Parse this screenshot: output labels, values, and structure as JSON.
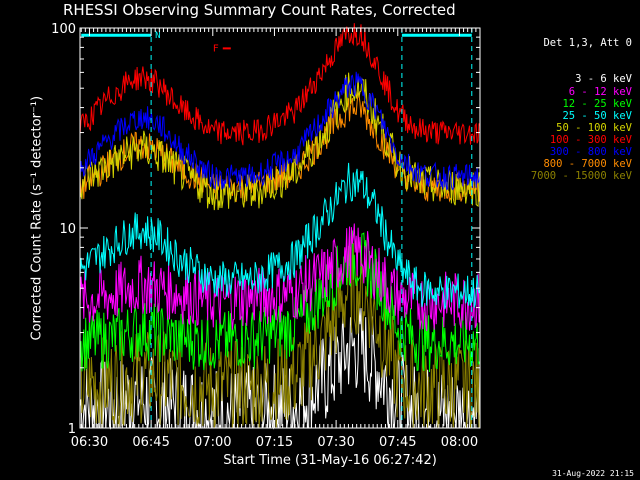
{
  "header": {
    "title": "RHESSI Observing Summary Count Rates, Corrected"
  },
  "legend": {
    "header": "Det 1,3, Att 0",
    "items": [
      {
        "label": "3 - 6 keV",
        "color": "#ffffff"
      },
      {
        "label": "6 - 12 keV",
        "color": "#ff00ff"
      },
      {
        "label": "12 - 25 keV",
        "color": "#00ff00"
      },
      {
        "label": "25 - 50 keV",
        "color": "#00ffff"
      },
      {
        "label": "50 - 100 keV",
        "color": "#d4d400"
      },
      {
        "label": "100 - 300 keV",
        "color": "#ff0000"
      },
      {
        "label": "300 - 800 keV",
        "color": "#0000ff"
      },
      {
        "label": "800 - 7000 keV",
        "color": "#ff8c00"
      },
      {
        "label": "7000 - 15000 keV",
        "color": "#8b8000"
      }
    ]
  },
  "footer": {
    "timestamp": "31-Aug-2022 21:15"
  },
  "annotations": {
    "n_flag": "N",
    "f_flag": "F"
  },
  "chart_data": {
    "type": "line",
    "title": "RHESSI Observing Summary Count Rates, Corrected",
    "xlabel": "Start Time (31-May-16 06:27:42)",
    "ylabel": "Corrected Count Rate (s⁻¹ detector⁻¹)",
    "y_scale": "log",
    "ylim": [
      1,
      100
    ],
    "xlim": [
      "06:27:42",
      "08:05:00"
    ],
    "x_ticks": [
      "06:30",
      "06:45",
      "07:00",
      "07:15",
      "07:30",
      "07:45",
      "08:00"
    ],
    "y_ticks": [
      "1",
      "10",
      "100"
    ],
    "x": [
      "06:28",
      "06:35",
      "06:40",
      "06:43",
      "06:47",
      "06:52",
      "07:00",
      "07:10",
      "07:20",
      "07:28",
      "07:33",
      "07:36",
      "07:40",
      "07:45",
      "07:50",
      "07:55",
      "08:03"
    ],
    "series": [
      {
        "name": "3 - 6 keV",
        "color": "#ffffff",
        "values": [
          1.3,
          1.3,
          1.4,
          1.4,
          1.3,
          1.3,
          1.2,
          1.2,
          1.3,
          1.8,
          2.5,
          2.5,
          2.0,
          1.4,
          1.2,
          1.2,
          1.2
        ]
      },
      {
        "name": "6 - 12 keV",
        "color": "#ff00ff",
        "values": [
          4.3,
          4.6,
          5.0,
          5.2,
          5.0,
          4.7,
          4.3,
          4.5,
          4.8,
          6.0,
          7.5,
          7.5,
          6.0,
          4.5,
          4.3,
          4.3,
          4.3
        ]
      },
      {
        "name": "12 - 25 keV",
        "color": "#00ff00",
        "values": [
          2.7,
          2.8,
          3.0,
          3.1,
          3.0,
          2.8,
          2.7,
          2.8,
          3.2,
          5.0,
          7.0,
          7.0,
          5.5,
          3.2,
          2.7,
          2.7,
          2.7
        ]
      },
      {
        "name": "25 - 50 keV",
        "color": "#00ffff",
        "values": [
          6.2,
          8.0,
          9.5,
          9.8,
          9.0,
          7.0,
          5.5,
          5.5,
          7.0,
          12,
          17,
          17,
          12,
          6.5,
          5.0,
          4.8,
          4.8
        ]
      },
      {
        "name": "50 - 100 keV",
        "color": "#d4d400",
        "values": [
          17,
          21,
          24,
          25,
          23,
          19,
          15,
          15,
          19,
          32,
          50,
          50,
          35,
          21,
          17,
          16,
          16
        ]
      },
      {
        "name": "100 - 300 keV",
        "color": "#ff0000",
        "values": [
          32,
          45,
          55,
          57,
          52,
          40,
          30,
          30,
          38,
          68,
          95,
          95,
          65,
          38,
          31,
          30,
          30
        ]
      },
      {
        "name": "300 - 800 keV",
        "color": "#0000ff",
        "values": [
          20,
          28,
          34,
          36,
          33,
          25,
          18,
          18,
          23,
          38,
          52,
          52,
          38,
          23,
          19,
          18,
          18
        ]
      },
      {
        "name": "800 - 7000 keV",
        "color": "#ff8c00",
        "values": [
          16,
          21,
          25,
          26,
          24,
          20,
          16,
          16,
          19,
          30,
          40,
          40,
          30,
          20,
          16,
          16,
          16
        ]
      },
      {
        "name": "7000 - 15000 keV",
        "color": "#8b8000",
        "values": [
          1.6,
          1.7,
          1.8,
          1.8,
          1.8,
          1.7,
          1.6,
          1.6,
          1.8,
          3.0,
          5.0,
          5.0,
          3.5,
          1.8,
          1.6,
          1.6,
          1.6
        ]
      }
    ],
    "state_bars": [
      {
        "label": "N",
        "color": "#00ffff",
        "start": "06:28",
        "end": "06:45",
        "y": 92
      },
      {
        "label": "",
        "color": "#00ffff",
        "start": "07:46",
        "end": "08:03",
        "y": 92
      }
    ],
    "state_lines": [
      "06:45",
      "07:46",
      "08:03"
    ],
    "state_line_color": "#00ffff",
    "flare_marker": {
      "label": "F",
      "color": "#ff0000",
      "x": "07:00",
      "y": 80
    },
    "grid": false,
    "legend_position": "top-right, outside plot"
  }
}
